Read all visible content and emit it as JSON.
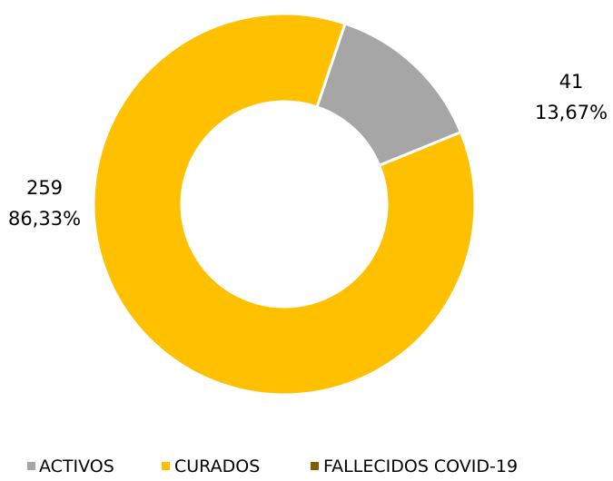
{
  "chart_data": {
    "type": "pie",
    "variant": "doughnut",
    "categories": [
      "ACTIVOS",
      "CURADOS",
      "FALLECIDOS COVID-19"
    ],
    "values": [
      41,
      259,
      0
    ],
    "percent_labels": [
      "13,67%",
      "86,33%",
      ""
    ],
    "value_labels": [
      "41",
      "259",
      ""
    ],
    "colors": [
      "#a6a6a6",
      "#ffc000",
      "#7f6000"
    ],
    "legend_position": "bottom",
    "title": ""
  }
}
